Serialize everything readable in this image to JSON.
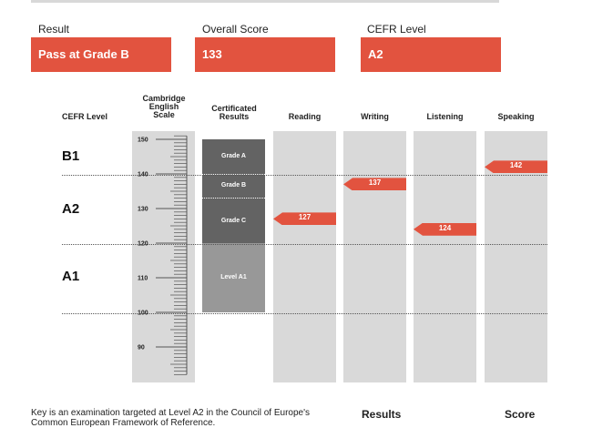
{
  "summary": {
    "result_label": "Result",
    "result_value": "Pass at Grade B",
    "score_label": "Overall Score",
    "score_value": "133",
    "cefr_label": "CEFR Level",
    "cefr_value": "A2"
  },
  "chart_data": {
    "type": "bar",
    "title": "",
    "headers": {
      "cefr": "CEFR Level",
      "scale_lines": [
        "Cambridge",
        "English",
        "Scale"
      ],
      "cert_lines": [
        "Certificated",
        "Results"
      ]
    },
    "skills": [
      "Reading",
      "Writing",
      "Listening",
      "Speaking"
    ],
    "scores": [
      127,
      137,
      124,
      142
    ],
    "scale_ticks": [
      "150",
      "140",
      "130",
      "120",
      "110",
      "100",
      "90"
    ],
    "ylim": [
      82,
      153
    ],
    "cefr_levels": [
      "B1",
      "A2",
      "A1"
    ],
    "cefr_boundaries": [
      140,
      120,
      100
    ],
    "certificated": [
      {
        "label": "Grade A",
        "from": 140,
        "to": 150
      },
      {
        "label": "Grade B",
        "from": 133,
        "to": 140
      },
      {
        "label": "Grade C",
        "from": 120,
        "to": 133
      },
      {
        "label": "Level A1",
        "from": 100,
        "to": 120
      }
    ]
  },
  "footer": {
    "description_line1": "Key is an examination targeted at Level A2 in the Council of Europe's",
    "description_line2": "Common European Framework of Reference.",
    "results_header": "Results",
    "score_header": "Score"
  }
}
